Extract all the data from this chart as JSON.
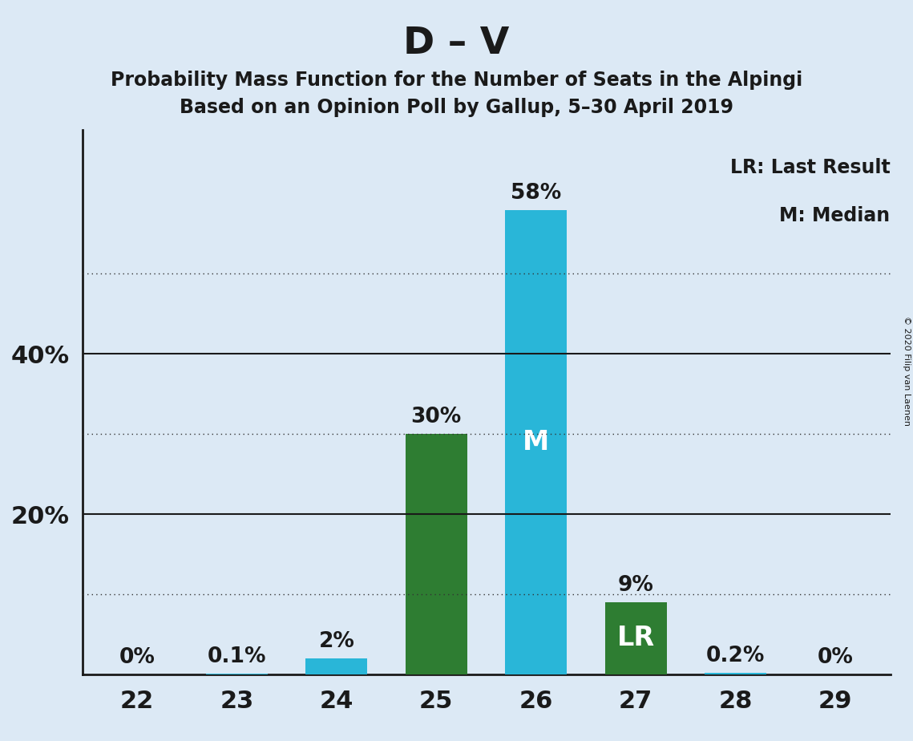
{
  "title": "D – V",
  "subtitle1": "Probability Mass Function for the Number of Seats in the Alpingi",
  "subtitle2": "Based on an Opinion Poll by Gallup, 5–30 April 2019",
  "categories": [
    22,
    23,
    24,
    25,
    26,
    27,
    28,
    29
  ],
  "values": [
    0.0,
    0.1,
    2.0,
    30.0,
    58.0,
    9.0,
    0.2,
    0.0
  ],
  "bar_colors": [
    "#29b6d8",
    "#29b6d8",
    "#29b6d8",
    "#2e7d32",
    "#29b6d8",
    "#2e7d32",
    "#29b6d8",
    "#29b6d8"
  ],
  "bar_labels": [
    "0%",
    "0.1%",
    "2%",
    "30%",
    "58%",
    "9%",
    "0.2%",
    "0%"
  ],
  "inside_labels": [
    null,
    null,
    null,
    null,
    "M",
    "LR",
    null,
    null
  ],
  "inside_label_color": "#ffffff",
  "legend_line1": "LR: Last Result",
  "legend_line2": "M: Median",
  "copyright": "© 2020 Filip van Laenen",
  "background_color": "#dce9f5",
  "title_fontsize": 34,
  "subtitle_fontsize": 17,
  "solid_yticks": [
    20,
    40
  ],
  "dotted_yticks": [
    10,
    30,
    50
  ],
  "ylim": [
    0,
    68
  ],
  "ytick_values": [
    20,
    40
  ],
  "ytick_labels": [
    "20%",
    "40%"
  ],
  "axis_label_fontsize": 22,
  "bar_label_fontsize": 19,
  "xlabel_fontsize": 22,
  "inside_label_fontsize": 24,
  "legend_fontsize": 17
}
